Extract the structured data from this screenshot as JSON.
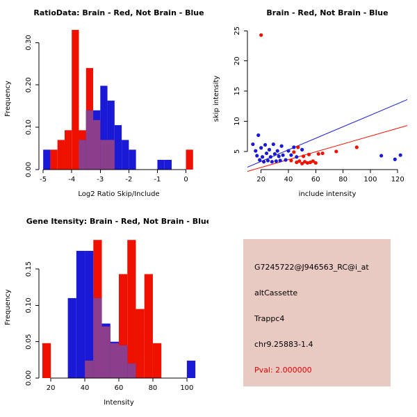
{
  "colors": {
    "red": "#EE1100",
    "blue": "#1A1AD6",
    "overlap": "#8B3E8B",
    "axis": "#000000",
    "info_bg": "#E9CAC2",
    "pval_red": "#E00000",
    "background": "#FFFFFF"
  },
  "charts": [
    {
      "id": "ratio-histogram",
      "type": "bar",
      "title": "RatioData: Brain - Red, Not Brain - Blue",
      "xlabel": "Log2 Ratio Skip/Include",
      "ylabel": "Frequency",
      "xlim": [
        -5.15,
        0.45
      ],
      "ylim": [
        0,
        0.335
      ],
      "xticks": [
        -5,
        -4,
        -3,
        -2,
        -1,
        0
      ],
      "xtick_labels": [
        "-5",
        "-4",
        "-3",
        "-2",
        "-1",
        "0"
      ],
      "yticks": [
        0.0,
        0.1,
        0.2,
        0.3
      ],
      "ytick_labels": [
        "0.00",
        "0.10",
        "0.20",
        "0.30"
      ],
      "bin_width": 0.25,
      "legend_hint": "Brain = red, Not Brain = blue, overlap = purple",
      "series": [
        {
          "name": "Brain",
          "color_key": "red",
          "bins": [
            [
              -4.75,
              0.047
            ],
            [
              -4.5,
              0.07
            ],
            [
              -4.25,
              0.093
            ],
            [
              -4.0,
              0.33
            ],
            [
              -3.75,
              0.093
            ],
            [
              -3.5,
              0.24
            ],
            [
              -3.25,
              0.117
            ],
            [
              -3.0,
              0.07
            ],
            [
              -2.75,
              0.07
            ],
            [
              0.0,
              0.047
            ]
          ]
        },
        {
          "name": "Not Brain",
          "color_key": "blue",
          "bins": [
            [
              -5.0,
              0.047
            ],
            [
              -3.75,
              0.07
            ],
            [
              -3.5,
              0.14
            ],
            [
              -3.25,
              0.14
            ],
            [
              -3.0,
              0.198
            ],
            [
              -2.75,
              0.163
            ],
            [
              -2.5,
              0.105
            ],
            [
              -2.25,
              0.07
            ],
            [
              -2.0,
              0.047
            ],
            [
              -1.0,
              0.023
            ],
            [
              -0.75,
              0.023
            ]
          ]
        }
      ]
    },
    {
      "id": "intensity-scatter",
      "type": "scatter",
      "title": "Brain - Red, Not Brain - Blue",
      "xlabel": "include intensity",
      "ylabel": "skip intensity",
      "xlim": [
        10,
        127
      ],
      "ylim": [
        2,
        25.5
      ],
      "xticks": [
        20,
        40,
        60,
        80,
        100,
        120
      ],
      "xtick_labels": [
        "20",
        "40",
        "60",
        "80",
        "100",
        "120"
      ],
      "yticks": [
        5,
        10,
        15,
        20,
        25
      ],
      "ytick_labels": [
        "5",
        "10",
        "15",
        "20",
        "25"
      ],
      "series": [
        {
          "name": "Brain",
          "color_key": "red",
          "points": [
            [
              20,
              24.3
            ],
            [
              42,
              3.5
            ],
            [
              44,
              4.9
            ],
            [
              46,
              3.2
            ],
            [
              47,
              5.7
            ],
            [
              48,
              3.4
            ],
            [
              50,
              3.0
            ],
            [
              51,
              4.2
            ],
            [
              52,
              3.3
            ],
            [
              54,
              3.1
            ],
            [
              55,
              4.5
            ],
            [
              56,
              3.2
            ],
            [
              58,
              3.4
            ],
            [
              60,
              3.1
            ],
            [
              62,
              4.6
            ],
            [
              65,
              4.7
            ],
            [
              75,
              5.0
            ],
            [
              90,
              5.7
            ]
          ]
        },
        {
          "name": "Not Brain",
          "color_key": "blue",
          "points": [
            [
              14,
              6.2
            ],
            [
              16,
              5.1
            ],
            [
              17,
              4.3
            ],
            [
              18,
              7.7
            ],
            [
              19,
              3.6
            ],
            [
              20,
              5.6
            ],
            [
              21,
              4.1
            ],
            [
              22,
              3.3
            ],
            [
              23,
              6.1
            ],
            [
              24,
              4.7
            ],
            [
              25,
              3.5
            ],
            [
              26,
              5.3
            ],
            [
              27,
              4.1
            ],
            [
              28,
              3.3
            ],
            [
              29,
              6.2
            ],
            [
              30,
              4.6
            ],
            [
              31,
              3.4
            ],
            [
              32,
              5.1
            ],
            [
              33,
              4.2
            ],
            [
              34,
              3.5
            ],
            [
              35,
              5.9
            ],
            [
              36,
              4.4
            ],
            [
              38,
              3.6
            ],
            [
              40,
              5.1
            ],
            [
              42,
              4.4
            ],
            [
              44,
              5.7
            ],
            [
              46,
              4.1
            ],
            [
              50,
              5.3
            ],
            [
              108,
              4.3
            ],
            [
              118,
              3.7
            ],
            [
              122,
              4.4
            ]
          ]
        }
      ],
      "lines": [
        {
          "name": "not-brain-fit",
          "color_key": "blue",
          "x1": 10,
          "y1": 2.4,
          "x2": 127,
          "y2": 13.6
        },
        {
          "name": "brain-fit",
          "color_key": "red",
          "x1": 10,
          "y1": 1.7,
          "x2": 127,
          "y2": 9.3
        }
      ]
    },
    {
      "id": "gene-intensity-histogram",
      "type": "bar",
      "title": "Gene Itensity: Brain - Red, Not Brain - Blue",
      "xlabel": "Intensity",
      "ylabel": "Frequency",
      "xlim": [
        13,
        107
      ],
      "ylim": [
        0,
        0.195
      ],
      "xticks": [
        20,
        40,
        60,
        80,
        100
      ],
      "xtick_labels": [
        "20",
        "40",
        "60",
        "80",
        "100"
      ],
      "yticks": [
        0.0,
        0.05,
        0.1,
        0.15
      ],
      "ytick_labels": [
        "0.00",
        "0.05",
        "0.10",
        "0.15"
      ],
      "bin_width": 5,
      "legend_hint": "Brain = red, Not Brain = blue, overlap = purple",
      "series": [
        {
          "name": "Brain",
          "color_key": "red",
          "bins": [
            [
              15,
              0.048
            ],
            [
              40,
              0.024
            ],
            [
              45,
              0.19
            ],
            [
              50,
              0.071
            ],
            [
              55,
              0.048
            ],
            [
              60,
              0.143
            ],
            [
              65,
              0.19
            ],
            [
              70,
              0.095
            ],
            [
              75,
              0.143
            ],
            [
              80,
              0.048
            ]
          ]
        },
        {
          "name": "Not Brain",
          "color_key": "blue",
          "bins": [
            [
              30,
              0.11
            ],
            [
              35,
              0.175
            ],
            [
              40,
              0.175
            ],
            [
              45,
              0.11
            ],
            [
              50,
              0.075
            ],
            [
              55,
              0.05
            ],
            [
              60,
              0.045
            ],
            [
              65,
              0.02
            ],
            [
              100,
              0.024
            ]
          ]
        }
      ]
    }
  ],
  "info": {
    "probe_id": "G7245722@J946563_RC@i_at",
    "event_type": "altCassette",
    "gene": "Trappc4",
    "location": "chr9.25883-1.4",
    "pval": "Pval: 2.000000"
  }
}
